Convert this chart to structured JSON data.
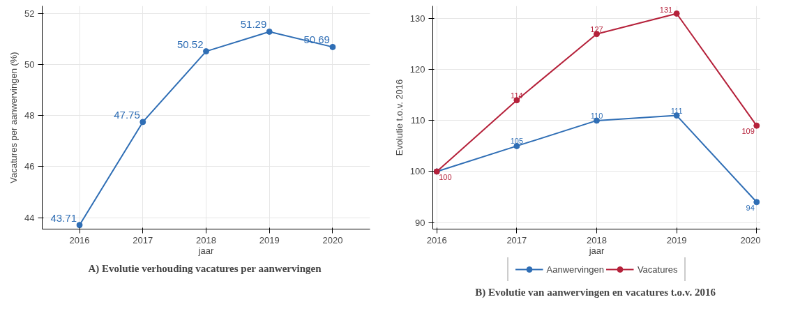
{
  "chart_data": [
    {
      "type": "line",
      "title": "A)  Evolutie verhouding vacatures per aanwervingen",
      "xlabel": "jaar",
      "ylabel": "Vacatures per aanwervingen (%)",
      "x": [
        2016,
        2017,
        2018,
        2019,
        2020
      ],
      "series": [
        {
          "color": "#2f6eb5",
          "values": [
            43.71,
            47.75,
            50.52,
            51.29,
            50.69
          ]
        }
      ],
      "xlim": [
        2015.41,
        2020.59
      ],
      "xticks": [
        2016,
        2017,
        2018,
        2019,
        2020
      ],
      "ylim": [
        43.55,
        52.3
      ],
      "yticks": [
        44,
        46,
        48,
        50,
        52
      ],
      "grid": true,
      "marker": "circle",
      "data_labels": true,
      "legend": false
    },
    {
      "type": "line",
      "title": "B)  Evolutie van aanwervingen en vacatures t.o.v. 2016",
      "xlabel": "jaar",
      "ylabel": "Evolutie t.o.v. 2016",
      "x": [
        2016,
        2017,
        2018,
        2019,
        2020
      ],
      "series": [
        {
          "name": "Aanwervingen",
          "color": "#2f6eb5",
          "values": [
            100,
            105,
            110,
            111,
            94
          ],
          "value_labels": [
            null,
            "105",
            "110",
            "111",
            "94"
          ]
        },
        {
          "name": "Vacatures",
          "color": "#b5213a",
          "values": [
            100,
            114,
            127,
            131,
            109
          ]
        }
      ],
      "xlim": [
        2015.95,
        2020.05
      ],
      "xticks": [
        2016,
        2017,
        2018,
        2019,
        2020
      ],
      "ylim": [
        88.7,
        132.5
      ],
      "yticks": [
        90,
        100,
        110,
        120,
        130
      ],
      "grid": true,
      "marker": "circle",
      "data_labels": true,
      "legend": "bottom"
    }
  ]
}
